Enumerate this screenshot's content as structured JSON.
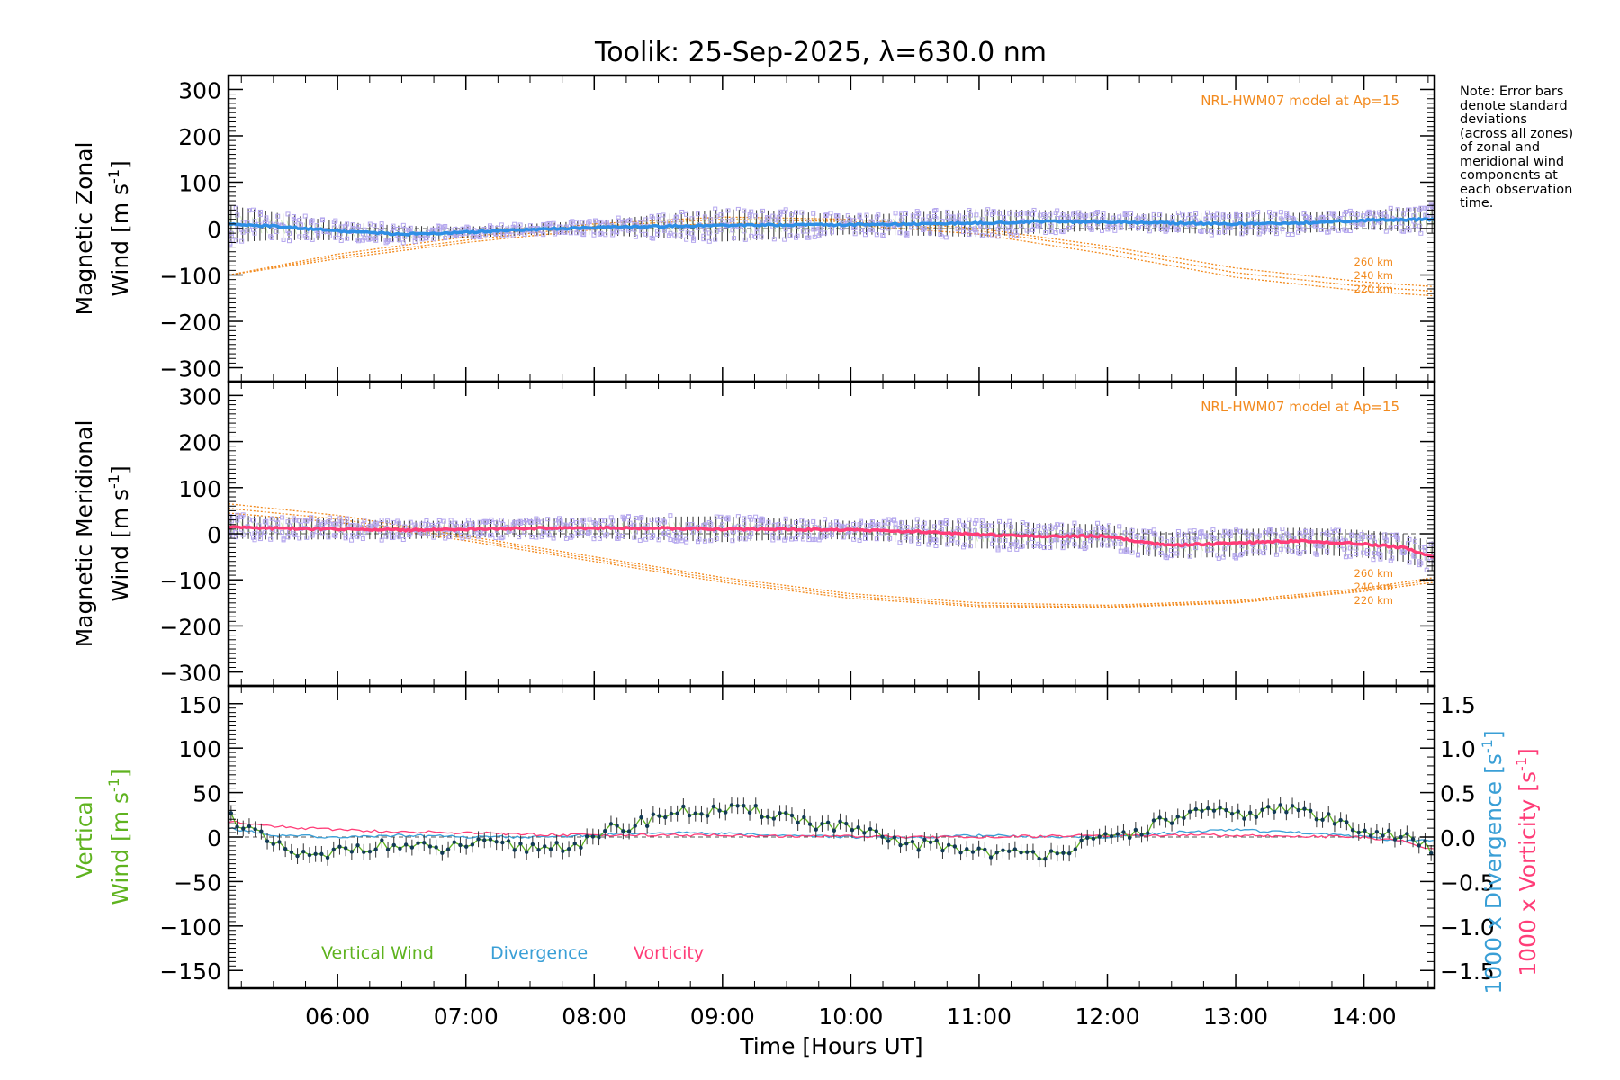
{
  "title": "Toolik: 25-Sep-2025, λ=630.0 nm",
  "note_lines": [
    "Note: Error bars",
    "denote standard",
    "deviations",
    "(across all zones)",
    "of zonal and",
    "meridional wind",
    "components at",
    "each observation",
    "time."
  ],
  "colors": {
    "model": "#f28a1e",
    "zonal": "#2e8fe6",
    "meridional": "#ff3d78",
    "vertical": "#5fb31f",
    "divergence": "#3a9fd6",
    "vorticity": "#ff3d78",
    "zone_box": "#b4a6ee",
    "errbar": "#333333",
    "data_point": "#123a55"
  },
  "chart_data": [
    {
      "type": "line",
      "name": "zonal",
      "ylabel_lines": [
        "Magnetic Zonal",
        "Wind [m s",
        "-1",
        "]"
      ],
      "ylim": [
        -330,
        330
      ],
      "yticks": [
        -300,
        -200,
        -100,
        0,
        100,
        200,
        300
      ],
      "model_label": "NRL-HWM07 model at Ap=15",
      "model_heights": [
        "260 km",
        "240 km",
        "220 km"
      ],
      "model_curves": [
        {
          "label": "260 km",
          "x": [
            5.15,
            6,
            7,
            8,
            9,
            10,
            11,
            12,
            13,
            14,
            14.55
          ],
          "y": [
            -100,
            -55,
            -18,
            10,
            25,
            20,
            0,
            -38,
            -85,
            -115,
            -125
          ]
        },
        {
          "label": "240 km",
          "x": [
            5.15,
            6,
            7,
            8,
            9,
            10,
            11,
            12,
            13,
            14,
            14.55
          ],
          "y": [
            -100,
            -60,
            -25,
            5,
            20,
            15,
            -5,
            -45,
            -95,
            -125,
            -135
          ]
        },
        {
          "label": "220 km",
          "x": [
            5.15,
            6,
            7,
            8,
            9,
            10,
            11,
            12,
            13,
            14,
            14.55
          ],
          "y": [
            -100,
            -65,
            -30,
            -2,
            12,
            8,
            -12,
            -55,
            -105,
            -135,
            -145
          ]
        }
      ],
      "series": [
        {
          "name": "Magnetic zonal wind",
          "x": [
            5.15,
            5.5,
            6,
            6.5,
            7,
            7.5,
            8,
            8.5,
            9,
            9.5,
            10,
            10.5,
            11,
            11.5,
            12,
            12.5,
            13,
            13.5,
            14,
            14.55
          ],
          "y": [
            10,
            5,
            -5,
            -12,
            -8,
            -2,
            2,
            5,
            7,
            8,
            8,
            10,
            12,
            15,
            15,
            12,
            10,
            12,
            18,
            20
          ]
        }
      ],
      "std": [
        40,
        30,
        20,
        18,
        12,
        12,
        15,
        25,
        35,
        30,
        20,
        25,
        30,
        25,
        18,
        20,
        25,
        22,
        20,
        30
      ]
    },
    {
      "type": "line",
      "name": "meridional",
      "ylabel_lines": [
        "Magnetic Meridional",
        "Wind [m s",
        "-1",
        "]"
      ],
      "ylim": [
        -330,
        330
      ],
      "yticks": [
        -300,
        -200,
        -100,
        0,
        100,
        200,
        300
      ],
      "model_label": "NRL-HWM07 model at Ap=15",
      "model_heights": [
        "260 km",
        "240 km",
        "220 km"
      ],
      "model_curves": [
        {
          "label": "260 km",
          "x": [
            5.15,
            6,
            7,
            8,
            9,
            10,
            11,
            12,
            13,
            14,
            14.55
          ],
          "y": [
            65,
            40,
            -5,
            -50,
            -95,
            -130,
            -150,
            -155,
            -145,
            -118,
            -95
          ]
        },
        {
          "label": "240 km",
          "x": [
            5.15,
            6,
            7,
            8,
            9,
            10,
            11,
            12,
            13,
            14,
            14.55
          ],
          "y": [
            55,
            32,
            -10,
            -55,
            -100,
            -135,
            -155,
            -158,
            -148,
            -122,
            -100
          ]
        },
        {
          "label": "220 km",
          "x": [
            5.15,
            6,
            7,
            8,
            9,
            10,
            11,
            12,
            13,
            14,
            14.55
          ],
          "y": [
            45,
            25,
            -15,
            -60,
            -105,
            -140,
            -158,
            -160,
            -150,
            -125,
            -105
          ]
        }
      ],
      "series": [
        {
          "name": "Magnetic meridional wind",
          "x": [
            5.15,
            5.5,
            6,
            6.5,
            7,
            7.5,
            8,
            8.5,
            9,
            9.5,
            10,
            10.5,
            11,
            11.5,
            12,
            12.3,
            12.5,
            13,
            13.5,
            14,
            14.3,
            14.55
          ],
          "y": [
            15,
            12,
            10,
            8,
            10,
            12,
            12,
            12,
            10,
            10,
            8,
            5,
            -2,
            -5,
            -5,
            -20,
            -25,
            -20,
            -15,
            -22,
            -30,
            -50
          ]
        }
      ],
      "std": [
        25,
        25,
        22,
        20,
        18,
        20,
        22,
        25,
        28,
        22,
        20,
        25,
        30,
        28,
        25,
        28,
        28,
        30,
        28,
        30,
        30,
        32
      ]
    },
    {
      "type": "line",
      "name": "vertical",
      "ylabel_lines": [
        "Vertical",
        "Wind [m s",
        "-1",
        "]"
      ],
      "ylim": [
        -170,
        170
      ],
      "yticks": [
        -150,
        -100,
        -50,
        0,
        50,
        100,
        150
      ],
      "y2lim": [
        -1.7,
        1.7
      ],
      "y2ticks": [
        -1.5,
        -1.0,
        -0.5,
        0.0,
        0.5,
        1.0,
        1.5
      ],
      "y2tick_labels": [
        "−1.5",
        "−1.0",
        "−0.5",
        "0.0",
        "0.5",
        "1.0",
        "1.5"
      ],
      "y2labels": {
        "divergence": "1000 x Divergence [s",
        "divergence_sup": "-1",
        "divergence_end": "]",
        "vorticity": "1000 x Vorticity [s",
        "vorticity_sup": "-1",
        "vorticity_end": "]"
      },
      "legend": [
        "Vertical Wind",
        "Divergence",
        "Vorticity"
      ],
      "series": [
        {
          "name": "Vertical Wind",
          "x": [
            5.15,
            5.3,
            5.5,
            5.7,
            5.9,
            6.0,
            6.2,
            6.5,
            6.8,
            7.0,
            7.3,
            7.5,
            7.7,
            8.0,
            8.15,
            8.3,
            8.5,
            8.7,
            9.0,
            9.3,
            9.5,
            9.7,
            10.0,
            10.3,
            10.5,
            10.7,
            11.0,
            11.3,
            11.5,
            11.7,
            12.0,
            12.2,
            12.5,
            12.7,
            13.0,
            13.3,
            13.5,
            13.7,
            14.0,
            14.3,
            14.55
          ],
          "y": [
            25,
            10,
            -10,
            -20,
            -25,
            -15,
            -10,
            -10,
            -15,
            -8,
            -10,
            -12,
            -10,
            -5,
            10,
            12,
            25,
            28,
            30,
            28,
            25,
            15,
            10,
            -5,
            -8,
            -10,
            -15,
            -20,
            -18,
            -12,
            -2,
            5,
            20,
            28,
            25,
            30,
            32,
            20,
            10,
            0,
            -15
          ]
        },
        {
          "name": "Divergence",
          "x": [
            5.15,
            5.5,
            6,
            6.5,
            7,
            7.5,
            8,
            8.5,
            9,
            9.5,
            10,
            10.5,
            11,
            11.5,
            12,
            12.5,
            13,
            13.5,
            14,
            14.3,
            14.55
          ],
          "y": [
            0.1,
            0.02,
            0.0,
            0.02,
            0.0,
            0.0,
            0.02,
            0.05,
            0.04,
            0.02,
            0.0,
            0.0,
            0.02,
            0.0,
            0.0,
            0.05,
            0.08,
            0.05,
            0.0,
            -0.05,
            -0.03
          ]
        },
        {
          "name": "Vorticity",
          "x": [
            5.15,
            5.5,
            6,
            6.5,
            7,
            7.5,
            8,
            8.5,
            9,
            9.5,
            10,
            10.5,
            11,
            11.5,
            12,
            12.5,
            13,
            13.5,
            14,
            14.3,
            14.55
          ],
          "y": [
            0.18,
            0.12,
            0.08,
            0.06,
            0.05,
            0.03,
            0.02,
            0.02,
            0.02,
            0.01,
            0.01,
            0.0,
            0.0,
            0.01,
            0.02,
            0.02,
            0.02,
            0.01,
            0.0,
            -0.05,
            -0.15
          ]
        }
      ]
    }
  ],
  "xaxis": {
    "xlim": [
      5.15,
      14.55
    ],
    "ticks": [
      6,
      7,
      8,
      9,
      10,
      11,
      12,
      13,
      14
    ],
    "tick_labels": [
      "06:00",
      "07:00",
      "08:00",
      "09:00",
      "10:00",
      "11:00",
      "12:00",
      "13:00",
      "14:00"
    ],
    "label": "Time [Hours UT]"
  }
}
